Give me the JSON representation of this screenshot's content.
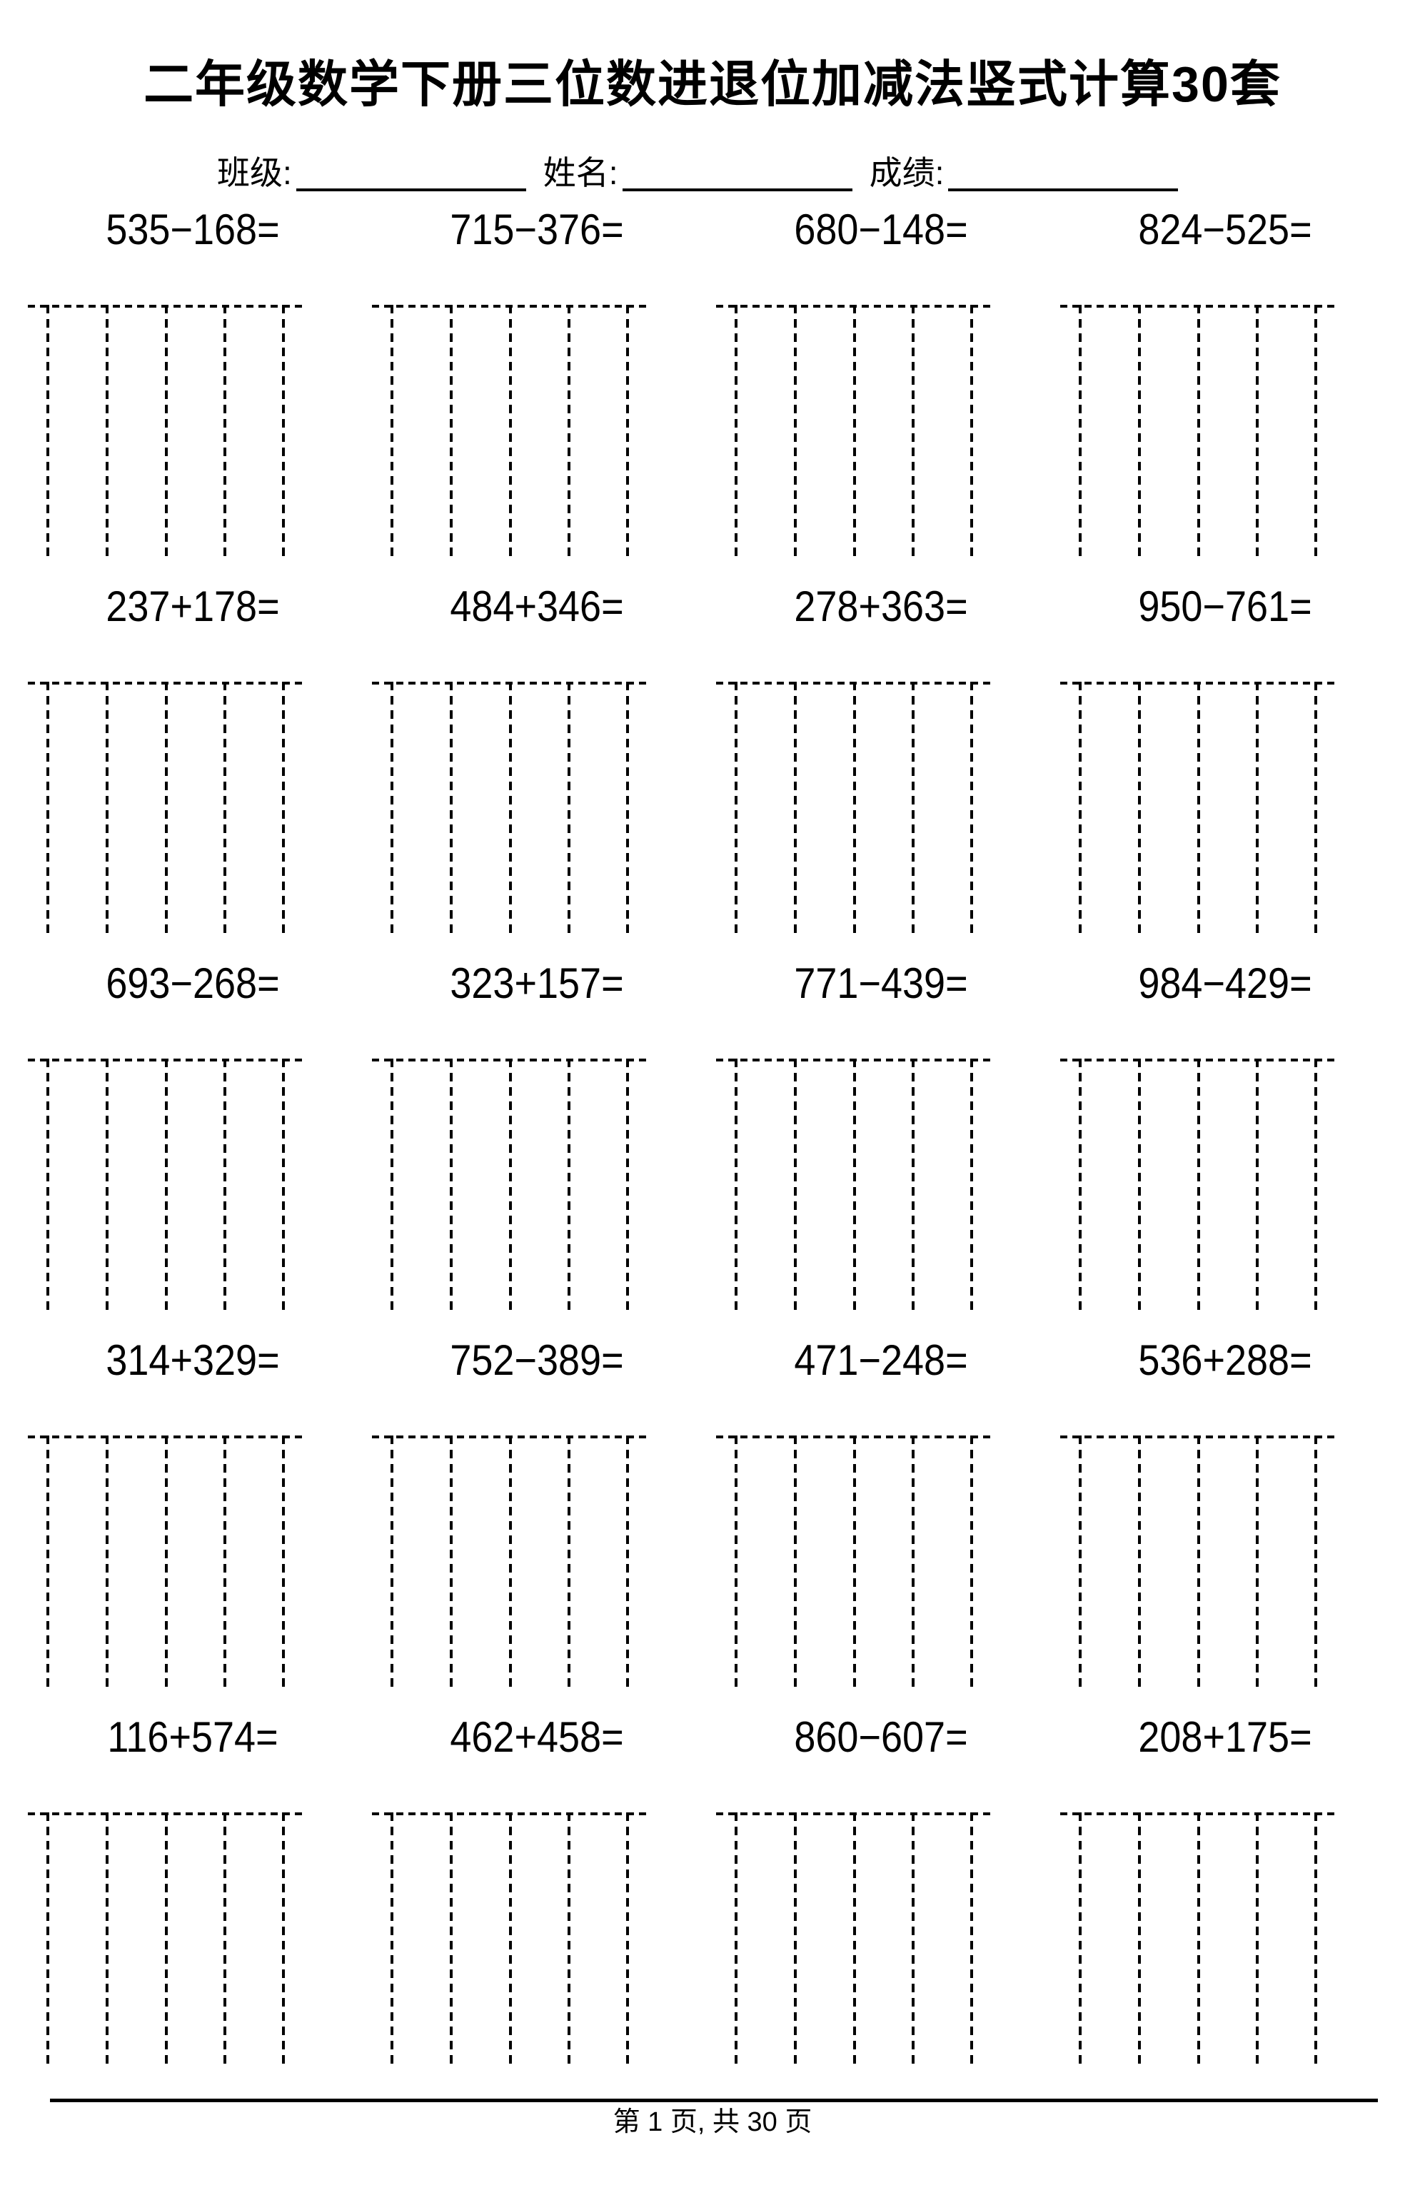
{
  "page": {
    "title": "二年级数学下册三位数进退位加减法竖式计算30套",
    "meta": {
      "class_label": "班级:",
      "name_label": "姓名:",
      "score_label": "成绩:",
      "class_value": "",
      "name_value": "",
      "score_value": ""
    },
    "problems": [
      "535−168=",
      "715−376=",
      "680−148=",
      "824−525=",
      "237+178=",
      "484+346=",
      "278+363=",
      "950−761=",
      "693−268=",
      "323+157=",
      "771−439=",
      "984−429=",
      "314+329=",
      "752−389=",
      "471−248=",
      "536+288=",
      "116+574=",
      "462+458=",
      "860−607=",
      "208+175="
    ],
    "footer": {
      "text": "第 1 页, 共 30 页",
      "page_number": "1",
      "total_pages": "30"
    }
  }
}
